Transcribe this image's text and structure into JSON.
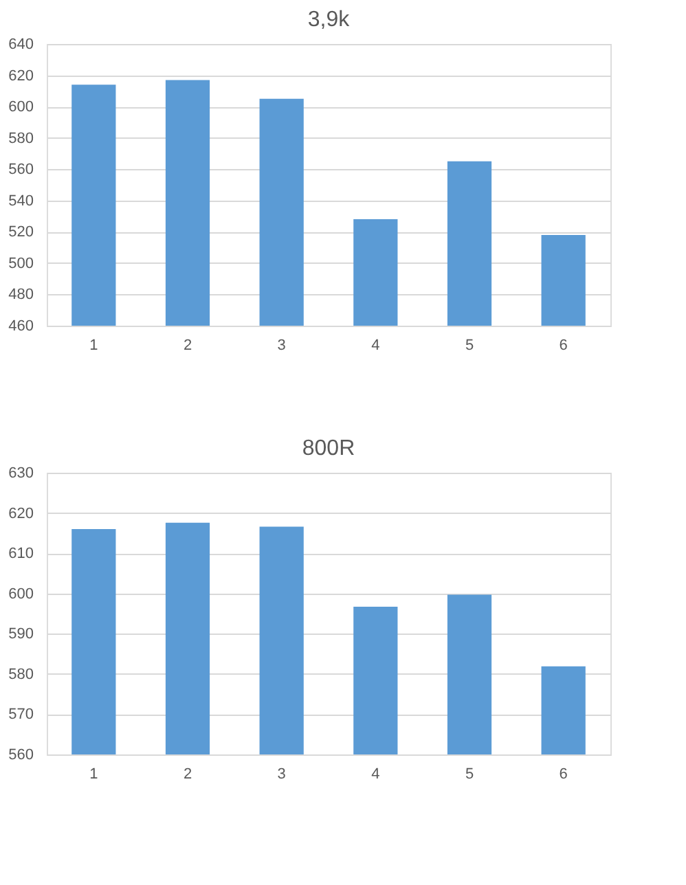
{
  "chart_data": [
    {
      "type": "bar",
      "title": "3,9k",
      "categories": [
        "1",
        "2",
        "3",
        "4",
        "5",
        "6"
      ],
      "values": [
        614,
        617,
        605,
        528,
        565,
        518
      ],
      "color": "#5b9bd5",
      "ylim": [
        460,
        640
      ],
      "yticks": [
        460,
        480,
        500,
        520,
        540,
        560,
        580,
        600,
        620,
        640
      ],
      "grid": "y"
    },
    {
      "type": "bar",
      "title": "800R",
      "categories": [
        "1",
        "2",
        "3",
        "4",
        "5",
        "6"
      ],
      "values": [
        616,
        617.6,
        616.6,
        596.7,
        599.7,
        581.9
      ],
      "color": "#5b9bd5",
      "ylim": [
        560,
        630
      ],
      "yticks": [
        560,
        570,
        580,
        590,
        600,
        610,
        620,
        630
      ],
      "grid": "y"
    }
  ]
}
